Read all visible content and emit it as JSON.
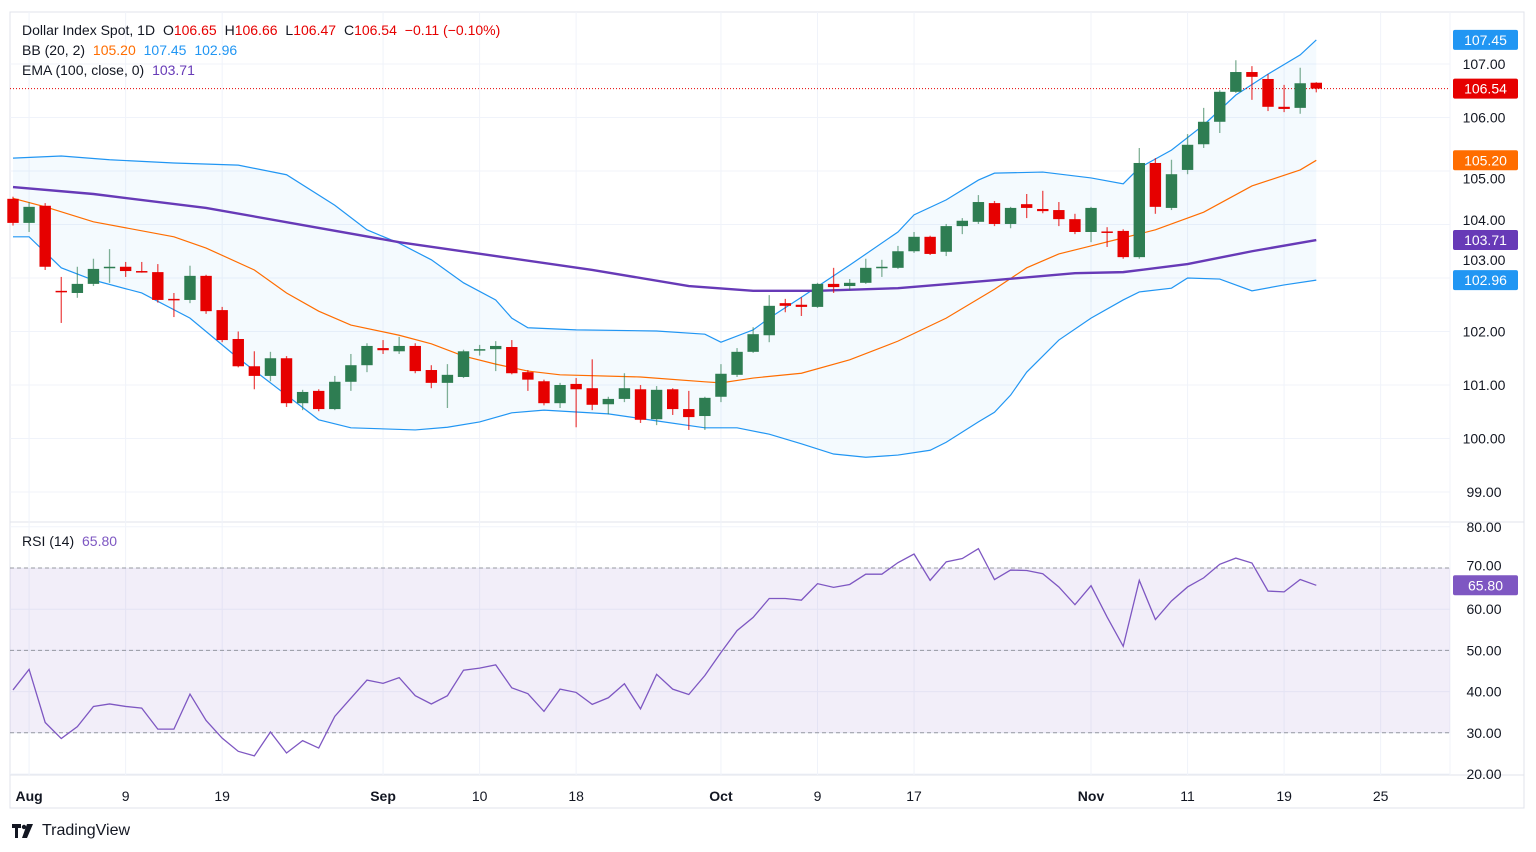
{
  "header": {
    "symbol": "Dollar Index Spot, 1D",
    "o_label": "O",
    "o": "106.65",
    "h_label": "H",
    "h": "106.66",
    "l_label": "L",
    "l": "106.47",
    "c_label": "C",
    "c": "106.54",
    "change": "−0.11 (−0.10%)"
  },
  "bb": {
    "label": "BB (20, 2)",
    "basis": "105.20",
    "upper": "107.45",
    "lower": "102.96"
  },
  "ema": {
    "label": "EMA (100, close, 0)",
    "value": "103.71"
  },
  "rsi": {
    "label": "RSI (14)",
    "value": "65.80"
  },
  "brand": {
    "name": "TradingView"
  },
  "colors": {
    "up": "#2e7d52",
    "down": "#e60000",
    "bb_basis": "#ff6d00",
    "bb_band": "#2196f3",
    "ema": "#673ab7",
    "rsi": "#7e57c2",
    "last_price": "#e60000"
  },
  "chart_data": [
    {
      "type": "candlestick",
      "title": "Dollar Index Spot, 1D",
      "ylim": [
        98.6,
        107.9
      ],
      "y_ticks": [
        "107.00",
        "106.00",
        "105.00",
        "104.00",
        "103.00",
        "102.00",
        "101.00",
        "100.00",
        "99.00"
      ],
      "x_ticks": [
        {
          "label": "Aug",
          "bar": 1,
          "bold": true
        },
        {
          "label": "9",
          "bar": 7
        },
        {
          "label": "19",
          "bar": 13
        },
        {
          "label": "Sep",
          "bar": 23,
          "bold": true
        },
        {
          "label": "10",
          "bar": 29
        },
        {
          "label": "18",
          "bar": 35
        },
        {
          "label": "Oct",
          "bar": 44,
          "bold": true
        },
        {
          "label": "9",
          "bar": 50
        },
        {
          "label": "17",
          "bar": 56
        },
        {
          "label": "Nov",
          "bar": 67,
          "bold": true
        },
        {
          "label": "11",
          "bar": 73
        },
        {
          "label": "19",
          "bar": 79
        },
        {
          "label": "25",
          "bar": 85
        }
      ],
      "ohlc": [
        [
          104.48,
          104.52,
          103.98,
          104.03
        ],
        [
          104.03,
          104.42,
          103.86,
          104.33
        ],
        [
          104.35,
          104.4,
          103.15,
          103.21
        ],
        [
          102.76,
          103.02,
          102.16,
          102.74
        ],
        [
          102.72,
          103.21,
          102.63,
          102.89
        ],
        [
          102.89,
          103.36,
          102.85,
          103.17
        ],
        [
          103.19,
          103.54,
          102.91,
          103.21
        ],
        [
          103.21,
          103.3,
          103.02,
          103.13
        ],
        [
          103.13,
          103.3,
          103.1,
          103.11
        ],
        [
          103.11,
          103.26,
          102.54,
          102.59
        ],
        [
          102.61,
          102.72,
          102.27,
          102.6
        ],
        [
          102.59,
          103.23,
          102.53,
          103.04
        ],
        [
          103.04,
          103.06,
          102.33,
          102.38
        ],
        [
          102.4,
          102.46,
          101.8,
          101.84
        ],
        [
          101.86,
          102.0,
          101.33,
          101.35
        ],
        [
          101.35,
          101.63,
          100.92,
          101.17
        ],
        [
          101.17,
          101.62,
          101.07,
          101.5
        ],
        [
          101.5,
          101.54,
          100.59,
          100.66
        ],
        [
          100.66,
          100.91,
          100.53,
          100.87
        ],
        [
          100.89,
          100.92,
          100.51,
          100.55
        ],
        [
          100.55,
          101.17,
          100.53,
          101.06
        ],
        [
          101.06,
          101.58,
          100.89,
          101.37
        ],
        [
          101.37,
          101.78,
          101.24,
          101.73
        ],
        [
          101.69,
          101.84,
          101.58,
          101.65
        ],
        [
          101.63,
          101.9,
          101.58,
          101.73
        ],
        [
          101.73,
          101.78,
          101.22,
          101.26
        ],
        [
          101.28,
          101.37,
          100.94,
          101.04
        ],
        [
          101.04,
          101.39,
          100.57,
          101.19
        ],
        [
          101.15,
          101.66,
          101.13,
          101.63
        ],
        [
          101.65,
          101.75,
          101.55,
          101.67
        ],
        [
          101.67,
          101.82,
          101.26,
          101.73
        ],
        [
          101.71,
          101.84,
          101.2,
          101.22
        ],
        [
          101.24,
          101.28,
          100.89,
          101.1
        ],
        [
          101.07,
          101.1,
          100.62,
          100.66
        ],
        [
          100.66,
          101.04,
          100.57,
          101.0
        ],
        [
          101.02,
          101.13,
          100.21,
          100.92
        ],
        [
          100.94,
          101.48,
          100.53,
          100.63
        ],
        [
          100.64,
          100.78,
          100.45,
          100.74
        ],
        [
          100.74,
          101.22,
          100.68,
          100.94
        ],
        [
          100.92,
          101.0,
          100.29,
          100.35
        ],
        [
          100.36,
          100.98,
          100.25,
          100.91
        ],
        [
          100.92,
          100.94,
          100.44,
          100.55
        ],
        [
          100.55,
          100.89,
          100.16,
          100.4
        ],
        [
          100.42,
          100.78,
          100.16,
          100.76
        ],
        [
          100.78,
          101.39,
          100.68,
          101.21
        ],
        [
          101.19,
          101.69,
          101.15,
          101.62
        ],
        [
          101.62,
          102.08,
          101.6,
          101.95
        ],
        [
          101.93,
          102.68,
          101.8,
          102.48
        ],
        [
          102.53,
          102.61,
          102.36,
          102.48
        ],
        [
          102.5,
          102.64,
          102.29,
          102.46
        ],
        [
          102.46,
          102.91,
          102.44,
          102.89
        ],
        [
          102.89,
          103.19,
          102.72,
          102.83
        ],
        [
          102.85,
          102.98,
          102.77,
          102.91
        ],
        [
          102.91,
          103.36,
          102.89,
          103.19
        ],
        [
          103.19,
          103.34,
          103.02,
          103.21
        ],
        [
          103.19,
          103.6,
          103.17,
          103.5
        ],
        [
          103.5,
          103.86,
          103.47,
          103.77
        ],
        [
          103.77,
          103.79,
          103.43,
          103.45
        ],
        [
          103.49,
          104.01,
          103.41,
          103.97
        ],
        [
          103.97,
          104.12,
          103.82,
          104.07
        ],
        [
          104.05,
          104.55,
          104.01,
          104.42
        ],
        [
          104.4,
          104.44,
          103.97,
          104.01
        ],
        [
          104.01,
          104.33,
          103.93,
          104.31
        ],
        [
          104.38,
          104.57,
          104.12,
          104.31
        ],
        [
          104.29,
          104.63,
          104.21,
          104.25
        ],
        [
          104.27,
          104.42,
          103.97,
          104.1
        ],
        [
          104.1,
          104.2,
          103.82,
          103.86
        ],
        [
          103.86,
          104.33,
          103.67,
          104.31
        ],
        [
          103.87,
          103.95,
          103.58,
          103.86
        ],
        [
          103.88,
          103.91,
          103.36,
          103.39
        ],
        [
          103.39,
          105.43,
          103.36,
          105.15
        ],
        [
          105.15,
          105.24,
          104.2,
          104.33
        ],
        [
          104.31,
          105.21,
          104.27,
          104.94
        ],
        [
          105.02,
          105.69,
          104.94,
          105.49
        ],
        [
          105.5,
          106.18,
          105.43,
          105.92
        ],
        [
          105.92,
          106.51,
          105.71,
          106.48
        ],
        [
          106.48,
          107.07,
          106.46,
          106.85
        ],
        [
          106.85,
          106.96,
          106.33,
          106.76
        ],
        [
          106.72,
          106.81,
          106.12,
          106.2
        ],
        [
          106.2,
          106.61,
          106.1,
          106.16
        ],
        [
          106.18,
          106.93,
          106.07,
          106.64
        ],
        [
          106.65,
          106.66,
          106.47,
          106.54
        ]
      ],
      "bb_upper": [
        [
          0,
          105.24
        ],
        [
          3,
          105.28
        ],
        [
          6,
          105.21
        ],
        [
          10,
          105.15
        ],
        [
          14,
          105.11
        ],
        [
          17,
          104.93
        ],
        [
          20,
          104.36
        ],
        [
          22,
          103.9
        ],
        [
          24,
          103.65
        ],
        [
          26,
          103.34
        ],
        [
          28,
          102.91
        ],
        [
          30,
          102.59
        ],
        [
          31,
          102.25
        ],
        [
          32,
          102.07
        ],
        [
          35,
          102.03
        ],
        [
          40,
          102.01
        ],
        [
          43,
          101.95
        ],
        [
          44,
          101.8
        ],
        [
          46,
          102.03
        ],
        [
          47,
          102.25
        ],
        [
          49,
          102.64
        ],
        [
          52,
          103.24
        ],
        [
          55,
          103.86
        ],
        [
          56,
          104.18
        ],
        [
          58,
          104.46
        ],
        [
          60,
          104.83
        ],
        [
          61,
          104.96
        ],
        [
          64,
          104.98
        ],
        [
          67,
          104.87
        ],
        [
          69,
          104.76
        ],
        [
          70,
          105.06
        ],
        [
          72,
          105.39
        ],
        [
          74,
          105.86
        ],
        [
          76,
          106.42
        ],
        [
          78,
          106.81
        ],
        [
          80,
          107.17
        ],
        [
          81,
          107.45
        ]
      ],
      "bb_basis": [
        [
          0,
          104.49
        ],
        [
          2,
          104.33
        ],
        [
          5,
          104.05
        ],
        [
          10,
          103.77
        ],
        [
          12,
          103.56
        ],
        [
          15,
          103.15
        ],
        [
          17,
          102.72
        ],
        [
          19,
          102.38
        ],
        [
          21,
          102.12
        ],
        [
          24,
          101.93
        ],
        [
          26,
          101.77
        ],
        [
          28,
          101.54
        ],
        [
          30,
          101.39
        ],
        [
          32,
          101.26
        ],
        [
          34,
          101.19
        ],
        [
          39,
          101.15
        ],
        [
          43,
          101.06
        ],
        [
          44,
          101.04
        ],
        [
          46,
          101.13
        ],
        [
          49,
          101.22
        ],
        [
          52,
          101.47
        ],
        [
          55,
          101.82
        ],
        [
          58,
          102.25
        ],
        [
          61,
          102.79
        ],
        [
          63,
          103.19
        ],
        [
          65,
          103.45
        ],
        [
          67,
          103.6
        ],
        [
          69,
          103.75
        ],
        [
          71,
          103.9
        ],
        [
          74,
          104.23
        ],
        [
          77,
          104.72
        ],
        [
          80,
          105.02
        ],
        [
          81,
          105.2
        ]
      ],
      "bb_lower": [
        [
          0,
          103.77
        ],
        [
          1,
          103.77
        ],
        [
          3,
          103.19
        ],
        [
          5,
          102.96
        ],
        [
          8,
          102.72
        ],
        [
          11,
          102.25
        ],
        [
          14,
          101.5
        ],
        [
          17,
          100.81
        ],
        [
          19,
          100.35
        ],
        [
          21,
          100.2
        ],
        [
          25,
          100.16
        ],
        [
          27,
          100.21
        ],
        [
          29,
          100.31
        ],
        [
          31,
          100.48
        ],
        [
          33,
          100.53
        ],
        [
          37,
          100.46
        ],
        [
          40,
          100.33
        ],
        [
          43,
          100.2
        ],
        [
          45,
          100.2
        ],
        [
          47,
          100.08
        ],
        [
          49,
          99.9
        ],
        [
          51,
          99.71
        ],
        [
          53,
          99.65
        ],
        [
          55,
          99.69
        ],
        [
          57,
          99.78
        ],
        [
          58,
          99.93
        ],
        [
          60,
          100.31
        ],
        [
          61,
          100.49
        ],
        [
          62,
          100.81
        ],
        [
          63,
          101.24
        ],
        [
          65,
          101.84
        ],
        [
          67,
          102.25
        ],
        [
          69,
          102.59
        ],
        [
          70,
          102.74
        ],
        [
          72,
          102.81
        ],
        [
          73,
          103.0
        ],
        [
          75,
          102.98
        ],
        [
          77,
          102.76
        ],
        [
          79,
          102.87
        ],
        [
          81,
          102.96
        ]
      ],
      "ema100": [
        [
          0,
          104.7
        ],
        [
          5,
          104.57
        ],
        [
          12,
          104.31
        ],
        [
          18,
          103.99
        ],
        [
          24,
          103.67
        ],
        [
          30,
          103.41
        ],
        [
          36,
          103.15
        ],
        [
          42,
          102.85
        ],
        [
          46,
          102.76
        ],
        [
          50,
          102.76
        ],
        [
          55,
          102.81
        ],
        [
          61,
          102.96
        ],
        [
          66,
          103.09
        ],
        [
          69,
          103.11
        ],
        [
          73,
          103.26
        ],
        [
          77,
          103.5
        ],
        [
          81,
          103.71
        ]
      ],
      "last_price": 106.54,
      "badges": [
        {
          "value": "107.45",
          "color": "#2196f3"
        },
        {
          "value": "106.54",
          "color": "#e60000"
        },
        {
          "value": "105.20",
          "color": "#ff6d00"
        },
        {
          "value": "103.71",
          "color": "#673ab7"
        },
        {
          "value": "102.96",
          "color": "#2196f3"
        }
      ]
    },
    {
      "type": "line",
      "title": "RSI (14)",
      "ylim": [
        18,
        82
      ],
      "y_ticks": [
        "80.00",
        "70.00",
        "60.00",
        "50.00",
        "40.00",
        "30.00",
        "20.00"
      ],
      "bands": [
        70,
        50,
        30
      ],
      "values": [
        40.4,
        45.4,
        32.5,
        28.6,
        31.5,
        36.4,
        37.0,
        36.4,
        36.0,
        30.9,
        30.9,
        39.4,
        33.0,
        28.7,
        25.5,
        24.4,
        30.2,
        25.1,
        28.1,
        26.3,
        34.0,
        38.4,
        42.8,
        42.0,
        43.4,
        39.0,
        37.0,
        39.0,
        45.2,
        45.7,
        46.5,
        40.9,
        39.5,
        35.2,
        40.6,
        39.8,
        36.9,
        38.5,
        41.9,
        35.8,
        44.2,
        40.6,
        39.3,
        43.9,
        49.5,
        54.8,
        58.0,
        62.6,
        62.6,
        62.2,
        66.2,
        65.3,
        66.0,
        68.5,
        68.5,
        71.3,
        73.4,
        67.0,
        71.5,
        72.3,
        74.7,
        67.2,
        69.5,
        69.4,
        68.6,
        65.4,
        61.1,
        65.7,
        58.1,
        51.0,
        67.0,
        57.5,
        62.0,
        65.4,
        67.6,
        70.9,
        72.4,
        71.2,
        64.4,
        64.2,
        67.2,
        65.8
      ],
      "badge": {
        "value": "65.80",
        "color": "#7e57c2"
      }
    }
  ]
}
